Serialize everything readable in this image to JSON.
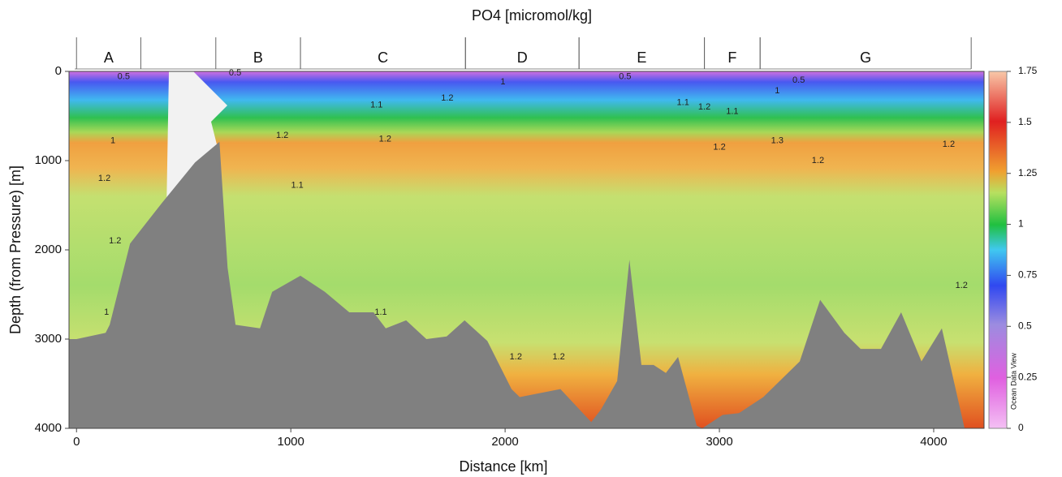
{
  "chart_data": {
    "type": "section",
    "title": "PO4 [micromol/kg]",
    "x_label": "Distance [km]",
    "y_label": "Depth (from Pressure) [m]",
    "watermark": "Ocean Data View",
    "xlim": [
      -35,
      4235
    ],
    "ylim": [
      4000,
      0
    ],
    "xticks": [
      0,
      1000,
      2000,
      3000,
      4000
    ],
    "yticks": [
      0,
      1000,
      2000,
      3000,
      4000
    ],
    "colorbar": {
      "lim": [
        0,
        1.75
      ],
      "ticks": [
        0,
        0.25,
        0.5,
        0.75,
        1,
        1.25,
        1.5,
        1.75
      ]
    },
    "sections": [
      {
        "label": "A",
        "start": 0,
        "end": 300
      },
      {
        "label": "B",
        "start": 650,
        "end": 1045
      },
      {
        "label": "C",
        "start": 1045,
        "end": 1815
      },
      {
        "label": "D",
        "start": 1815,
        "end": 2345
      },
      {
        "label": "E",
        "start": 2345,
        "end": 2930
      },
      {
        "label": "F",
        "start": 2930,
        "end": 3190
      },
      {
        "label": "G",
        "start": 3190,
        "end": 4175
      }
    ],
    "bathymetry": {
      "color": "#808080",
      "x": [
        -35,
        0,
        136,
        155,
        250,
        400,
        553,
        667,
        705,
        742,
        856,
        913,
        1045,
        1159,
        1273,
        1386,
        1443,
        1538,
        1633,
        1727,
        1811,
        1917,
        2030,
        2068,
        2258,
        2402,
        2447,
        2523,
        2580,
        2636,
        2693,
        2750,
        2807,
        2894,
        2920,
        3015,
        3091,
        3205,
        3375,
        3470,
        3583,
        3659,
        3754,
        3848,
        3943,
        4038,
        4144
      ],
      "depth": [
        3000,
        3000,
        2930,
        2840,
        1930,
        1470,
        1020,
        790,
        2200,
        2840,
        2880,
        2470,
        2290,
        2470,
        2700,
        2700,
        2880,
        2790,
        3000,
        2970,
        2790,
        3020,
        3560,
        3650,
        3560,
        3930,
        3790,
        3470,
        2110,
        3290,
        3290,
        3380,
        3200,
        3970,
        4000,
        3850,
        3830,
        3650,
        3250,
        2560,
        2930,
        3110,
        3110,
        2700,
        3250,
        2880,
        4000
      ]
    },
    "contour_labels": [
      {
        "x": 220,
        "depth": 60,
        "value": 0.5
      },
      {
        "x": 740,
        "depth": 20,
        "value": 0.5
      },
      {
        "x": 2560,
        "depth": 60,
        "value": 0.5
      },
      {
        "x": 3370,
        "depth": 100,
        "value": 0.5
      },
      {
        "x": 1990,
        "depth": 120,
        "value": 1
      },
      {
        "x": 3270,
        "depth": 220,
        "value": 1
      },
      {
        "x": 170,
        "depth": 780,
        "value": 1
      },
      {
        "x": 1400,
        "depth": 380,
        "value": 1.1
      },
      {
        "x": 2830,
        "depth": 350,
        "value": 1.1
      },
      {
        "x": 3060,
        "depth": 450,
        "value": 1.1
      },
      {
        "x": 1030,
        "depth": 1280,
        "value": 1.1
      },
      {
        "x": 1420,
        "depth": 2700,
        "value": 1.1
      },
      {
        "x": 1730,
        "depth": 300,
        "value": 1.2
      },
      {
        "x": 2930,
        "depth": 400,
        "value": 1.2
      },
      {
        "x": 960,
        "depth": 720,
        "value": 1.2
      },
      {
        "x": 1440,
        "depth": 760,
        "value": 1.2
      },
      {
        "x": 3000,
        "depth": 850,
        "value": 1.2
      },
      {
        "x": 3460,
        "depth": 1000,
        "value": 1.2
      },
      {
        "x": 4070,
        "depth": 820,
        "value": 1.2
      },
      {
        "x": 130,
        "depth": 1200,
        "value": 1.2
      },
      {
        "x": 180,
        "depth": 1900,
        "value": 1.2
      },
      {
        "x": 2050,
        "depth": 3200,
        "value": 1.2
      },
      {
        "x": 2250,
        "depth": 3200,
        "value": 1.2
      },
      {
        "x": 4130,
        "depth": 2400,
        "value": 1.2
      },
      {
        "x": 3270,
        "depth": 780,
        "value": 1.3
      },
      {
        "x": 140,
        "depth": 2700,
        "value": 1
      }
    ]
  }
}
